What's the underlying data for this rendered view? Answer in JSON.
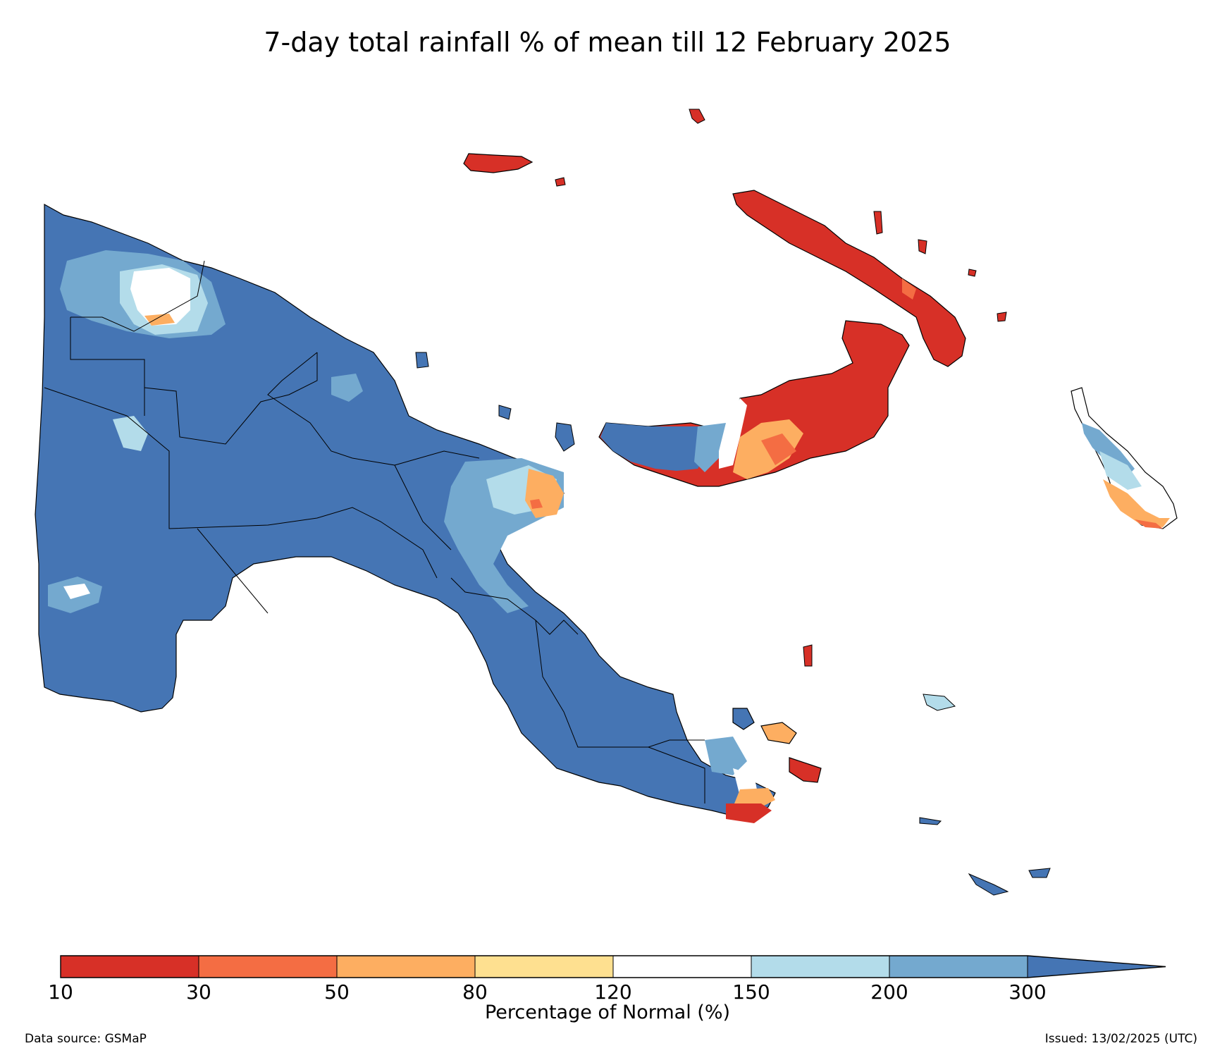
{
  "title": "7-day total rainfall % of mean till 12 February 2025",
  "colorbar": {
    "label": "Percentage of Normal (%)",
    "ticks": [
      "10",
      "30",
      "50",
      "80",
      "120",
      "150",
      "200",
      "300"
    ],
    "bins": [
      {
        "range": "10-30",
        "color": "#d73027"
      },
      {
        "range": "30-50",
        "color": "#f46d43"
      },
      {
        "range": "50-80",
        "color": "#fdae61"
      },
      {
        "range": "80-120",
        "color": "#fee090"
      },
      {
        "range": "120-150",
        "color": "#ffffff"
      },
      {
        "range": "150-200",
        "color": "#b3dcea"
      },
      {
        "range": "200-300",
        "color": "#74a9cf"
      },
      {
        "range": ">300",
        "color": "#4575b4"
      }
    ]
  },
  "footer": {
    "source": "Data source: GSMaP",
    "issued": "Issued: 13/02/2025 (UTC)"
  }
}
